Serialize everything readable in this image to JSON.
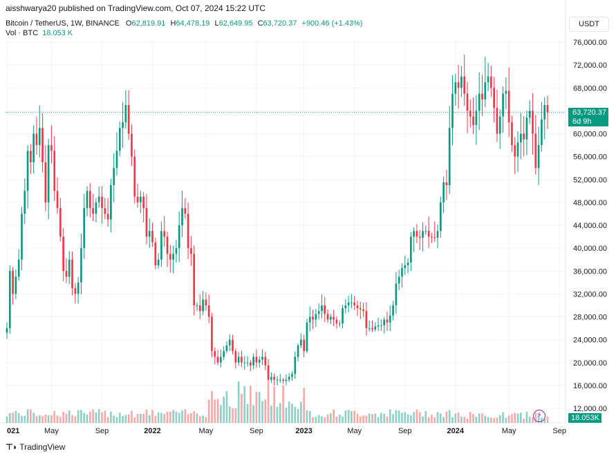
{
  "header": {
    "publisher": "aisshwarya20 published on TradingView.com, Oct 07, 2024 15:22 UTC"
  },
  "symbol": {
    "name": "Bitcoin / TetherUS, 1W, BINANCE",
    "open_label": "O",
    "open": "62,819.91",
    "high_label": "H",
    "high": "64,478.19",
    "low_label": "L",
    "low": "62,649.95",
    "close_label": "C",
    "close": "63,720.37",
    "change": "+900.46 (+1.43%)"
  },
  "volume": {
    "label": "Vol · BTC",
    "value": "18.053 K"
  },
  "currency_button": "USDT",
  "last_price": {
    "price": "63,720.37",
    "countdown": "6d 9h"
  },
  "volume_badge": "18.053K",
  "footer": {
    "brand": "TradingView",
    "logo_icon": "tradingview-logo-icon"
  },
  "colors": {
    "up": "#089981",
    "down": "#f23645",
    "vol_up": "#8fd0c6",
    "vol_down": "#f7a9a7"
  },
  "chart_data": {
    "type": "candlestick",
    "title": "",
    "xlabel": "",
    "ylabel": "",
    "ylim": [
      10000,
      78000
    ],
    "y_ticks": [
      76000,
      72000,
      68000,
      64000,
      60000,
      56000,
      52000,
      48000,
      44000,
      40000,
      36000,
      32000,
      28000,
      24000,
      20000,
      16000,
      12000
    ],
    "y_tick_labels": [
      "76,000.00",
      "72,000.00",
      "68,000.00",
      "64,000.00",
      "60,000.00",
      "56,000.00",
      "52,000.00",
      "48,000.00",
      "44,000.00",
      "40,000.00",
      "36,000.00",
      "32,000.00",
      "28,000.00",
      "24,000.00",
      "20,000.00",
      "16,000.00",
      "12,000.00"
    ],
    "x_tick_labels": [
      "021",
      "May",
      "Sep",
      "2022",
      "May",
      "Sep",
      "2023",
      "May",
      "Sep",
      "2024",
      "May",
      "Sep"
    ],
    "x_tick_bold": [
      true,
      false,
      false,
      true,
      false,
      false,
      true,
      false,
      false,
      true,
      false,
      false
    ],
    "x_tick_week_index": [
      0,
      15,
      32,
      49,
      67,
      84,
      100,
      117,
      134,
      151,
      169,
      186
    ],
    "last_price": 63720.37,
    "grid": true,
    "series_close": [
      26000,
      36000,
      32000,
      35000,
      38000,
      46000,
      50000,
      57000,
      55000,
      60000,
      58000,
      61000,
      55000,
      48000,
      58000,
      57000,
      50000,
      47000,
      42000,
      36000,
      35000,
      38000,
      33000,
      32000,
      34000,
      40000,
      47000,
      50000,
      47000,
      46000,
      48000,
      49000,
      47000,
      46000,
      45000,
      51000,
      54000,
      57000,
      61000,
      62000,
      65000,
      60000,
      56000,
      49000,
      48000,
      49000,
      47000,
      42000,
      43000,
      41000,
      37000,
      38000,
      43000,
      42000,
      39000,
      38000,
      39000,
      40000,
      44000,
      47000,
      46000,
      40000,
      39000,
      30000,
      30000,
      29000,
      31000,
      30000,
      28000,
      22000,
      21000,
      20000,
      21000,
      22000,
      23000,
      24000,
      22000,
      20000,
      21000,
      20000,
      20000,
      20000,
      19500,
      21000,
      20000,
      20500,
      21000,
      19500,
      17000,
      17500,
      17000,
      17000,
      17000,
      16800,
      17000,
      17500,
      18000,
      21000,
      23000,
      24000,
      22000,
      27000,
      28000,
      27500,
      28500,
      29000,
      30000,
      28500,
      27500,
      28000,
      27500,
      26800,
      26800,
      29500,
      30000,
      30500,
      30500,
      30000,
      29500,
      29300,
      29000,
      26000,
      26000,
      25800,
      26300,
      26500,
      26500,
      27500,
      27000,
      28200,
      30000,
      33800,
      35000,
      36500,
      37000,
      37500,
      42000,
      43000,
      42000,
      41800,
      43000,
      43000,
      42000,
      41900,
      41800,
      43000,
      48000,
      51500,
      51000,
      61000,
      67000,
      69000,
      68000,
      70000,
      67000,
      64000,
      63000,
      61500,
      64000,
      67000,
      66000,
      69000,
      70000,
      68000,
      64500,
      60000,
      63000,
      67000,
      67500,
      62000,
      58000,
      56000,
      58500,
      60000,
      59000,
      62800,
      64000,
      60000,
      54000,
      58000,
      62500,
      65000,
      63720
    ]
  }
}
